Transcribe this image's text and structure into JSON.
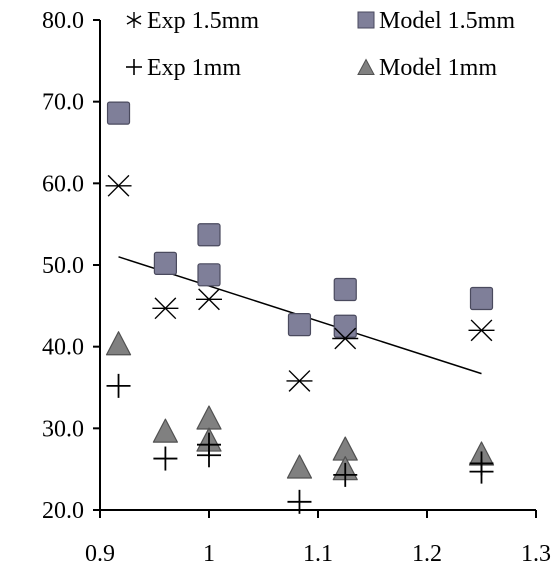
{
  "chart_data": {
    "type": "scatter",
    "title": "",
    "xlabel": "",
    "ylabel": "",
    "xlim": [
      0.9,
      1.3
    ],
    "ylim": [
      20.0,
      80.0
    ],
    "x_ticks": [
      0.9,
      1,
      1.1,
      1.2,
      1.3
    ],
    "x_tick_labels": [
      "0.9",
      "1",
      "1.1",
      "1.2",
      "1.3"
    ],
    "y_ticks": [
      20,
      30,
      40,
      50,
      60,
      70,
      80
    ],
    "y_tick_labels": [
      "20.0",
      "30.0",
      "40.0",
      "50.0",
      "60.0",
      "70.0",
      "80.0"
    ],
    "grid": false,
    "legend_position": "top",
    "series": [
      {
        "name": "Exp 1.5mm",
        "marker": "asterisk",
        "color": "#000000",
        "points": [
          {
            "x": 0.917,
            "y": 59.7
          },
          {
            "x": 0.96,
            "y": 44.7
          },
          {
            "x": 1.0,
            "y": 45.8
          },
          {
            "x": 1.083,
            "y": 35.8
          },
          {
            "x": 1.125,
            "y": 41.0
          },
          {
            "x": 1.25,
            "y": 42.0
          }
        ]
      },
      {
        "name": "Model 1.5mm",
        "marker": "square",
        "color": "#7f7f99",
        "points": [
          {
            "x": 0.917,
            "y": 68.6
          },
          {
            "x": 0.96,
            "y": 50.2
          },
          {
            "x": 1.0,
            "y": 53.7
          },
          {
            "x": 1.0,
            "y": 48.8
          },
          {
            "x": 1.083,
            "y": 42.7
          },
          {
            "x": 1.125,
            "y": 47.0
          },
          {
            "x": 1.125,
            "y": 42.5
          },
          {
            "x": 1.25,
            "y": 45.9
          }
        ]
      },
      {
        "name": "Exp 1mm",
        "marker": "plus",
        "color": "#000000",
        "points": [
          {
            "x": 0.917,
            "y": 35.2
          },
          {
            "x": 0.96,
            "y": 26.3
          },
          {
            "x": 1.0,
            "y": 26.7
          },
          {
            "x": 1.0,
            "y": 28.0
          },
          {
            "x": 1.083,
            "y": 21.0
          },
          {
            "x": 1.125,
            "y": 24.3
          },
          {
            "x": 1.25,
            "y": 24.7
          },
          {
            "x": 1.25,
            "y": 25.7
          }
        ]
      },
      {
        "name": "Model 1mm",
        "marker": "triangle",
        "color": "#808080",
        "points": [
          {
            "x": 0.917,
            "y": 40.3
          },
          {
            "x": 0.96,
            "y": 29.6
          },
          {
            "x": 1.0,
            "y": 31.2
          },
          {
            "x": 1.0,
            "y": 28.5
          },
          {
            "x": 1.083,
            "y": 25.2
          },
          {
            "x": 1.125,
            "y": 27.4
          },
          {
            "x": 1.125,
            "y": 25.0
          },
          {
            "x": 1.25,
            "y": 26.8
          }
        ]
      }
    ],
    "trendline": {
      "color": "#000000",
      "points": [
        {
          "x": 0.917,
          "y": 51.0
        },
        {
          "x": 1.25,
          "y": 36.7
        }
      ]
    }
  }
}
